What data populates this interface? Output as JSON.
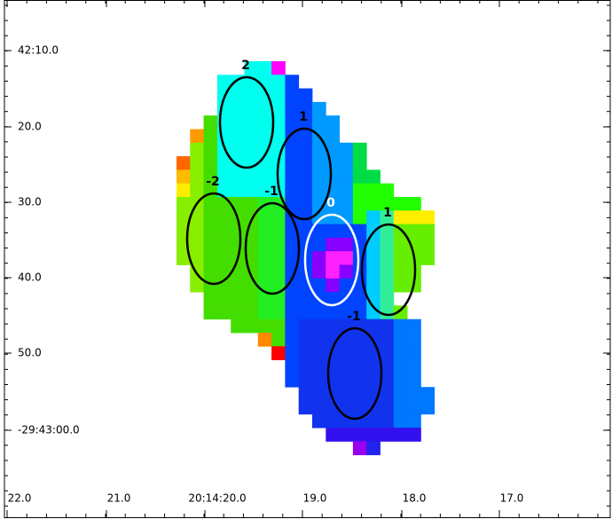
{
  "y_axis": {
    "ticks": [
      "42:10.0",
      "20.0",
      "30.0",
      "40.0",
      "50.0",
      "-29:43:00.0"
    ]
  },
  "x_axis": {
    "ticks": [
      "22.0",
      "21.0",
      "20:14:20.0",
      "19.0",
      "18.0",
      "17.0"
    ]
  },
  "regions": [
    {
      "label": "2"
    },
    {
      "label": "1"
    },
    {
      "label": "-2"
    },
    {
      "label": "-1"
    },
    {
      "label": "0"
    },
    {
      "label": "1"
    },
    {
      "label": "-1"
    }
  ]
}
